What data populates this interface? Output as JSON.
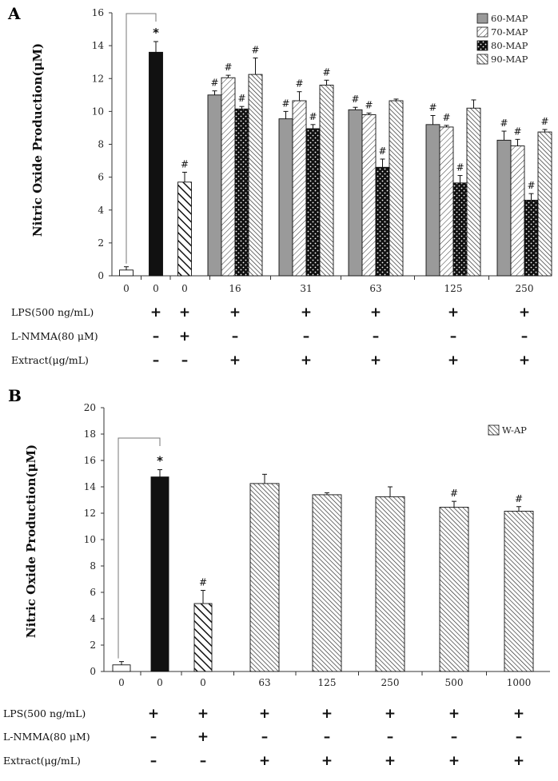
{
  "chart_data": [
    {
      "panel": "A",
      "type": "bar",
      "ylabel": "Nitric Oxide Production(μM)",
      "ylim": [
        0,
        16
      ],
      "yticks": [
        0,
        2,
        4,
        6,
        8,
        10,
        12,
        14,
        16
      ],
      "legend_position": "top-right",
      "controls": [
        {
          "label": "0",
          "value": 0.35,
          "error": 0.2,
          "fill": "white",
          "annotation": ""
        },
        {
          "label": "0",
          "value": 13.6,
          "error": 0.65,
          "fill": "black",
          "annotation": "*"
        },
        {
          "label": "0",
          "value": 5.7,
          "error": 0.6,
          "fill": "diag-bold",
          "annotation": "#"
        }
      ],
      "categories": [
        "16",
        "31",
        "63",
        "125",
        "250"
      ],
      "series": [
        {
          "name": "60-MAP",
          "fill": "gray",
          "values": [
            11.0,
            9.55,
            10.1,
            9.2,
            8.25
          ],
          "errors": [
            0.25,
            0.45,
            0.15,
            0.55,
            0.55
          ],
          "annotations": [
            "#",
            "#",
            "#",
            "#",
            "#"
          ]
        },
        {
          "name": "70-MAP",
          "fill": "hatch-light",
          "values": [
            12.05,
            10.65,
            9.8,
            9.05,
            7.9
          ],
          "errors": [
            0.15,
            0.55,
            0.1,
            0.1,
            0.4
          ],
          "annotations": [
            "#",
            "#",
            "#",
            "#",
            "#"
          ]
        },
        {
          "name": "80-MAP",
          "fill": "dots-black",
          "values": [
            10.15,
            8.95,
            6.6,
            5.65,
            4.6
          ],
          "errors": [
            0.15,
            0.25,
            0.5,
            0.45,
            0.4
          ],
          "annotations": [
            "#",
            "#",
            "#",
            "#",
            "#"
          ]
        },
        {
          "name": "90-MAP",
          "fill": "hatch-dense",
          "values": [
            12.25,
            11.6,
            10.65,
            10.2,
            8.75
          ],
          "errors": [
            1.0,
            0.3,
            0.1,
            0.5,
            0.15
          ],
          "annotations": [
            "#",
            "#",
            "",
            "",
            "#"
          ]
        }
      ],
      "bracket_annotation": "*",
      "conditions": [
        {
          "label": "LPS(500 ng/mL)",
          "marks": [
            "",
            "+",
            "+",
            "+",
            "+",
            "+",
            "+",
            "+"
          ]
        },
        {
          "label": "L-NMMA(80 μM)",
          "marks": [
            "",
            "–",
            "+",
            "–",
            "–",
            "–",
            "–",
            "–"
          ]
        },
        {
          "label": "Extract(μg/mL)",
          "marks": [
            "",
            "–",
            "–",
            "+",
            "+",
            "+",
            "+",
            "+"
          ]
        }
      ]
    },
    {
      "panel": "B",
      "type": "bar",
      "ylabel": "Nitric Oxide Production(μM)",
      "ylim": [
        0,
        20
      ],
      "yticks": [
        0,
        2,
        4,
        6,
        8,
        10,
        12,
        14,
        16,
        18,
        20
      ],
      "legend_position": "top-right",
      "controls": [
        {
          "label": "0",
          "value": 0.5,
          "error": 0.25,
          "fill": "white",
          "annotation": ""
        },
        {
          "label": "0",
          "value": 14.75,
          "error": 0.55,
          "fill": "black",
          "annotation": "*"
        },
        {
          "label": "0",
          "value": 5.15,
          "error": 1.0,
          "fill": "diag-bold",
          "annotation": "#"
        }
      ],
      "categories": [
        "63",
        "125",
        "250",
        "500",
        "1000"
      ],
      "series": [
        {
          "name": "W-AP",
          "fill": "hatch-dense",
          "values": [
            14.25,
            13.4,
            13.25,
            12.45,
            12.15
          ],
          "errors": [
            0.7,
            0.15,
            0.75,
            0.45,
            0.35
          ],
          "annotations": [
            "",
            "",
            "",
            "#",
            "#"
          ]
        }
      ],
      "bracket_annotation": "*",
      "conditions": [
        {
          "label": "LPS(500 ng/mL)",
          "marks": [
            "",
            "+",
            "+",
            "+",
            "+",
            "+",
            "+",
            "+"
          ]
        },
        {
          "label": "L-NMMA(80 μM)",
          "marks": [
            "",
            "–",
            "+",
            "–",
            "–",
            "–",
            "–",
            "–"
          ]
        },
        {
          "label": "Extract(μg/mL)",
          "marks": [
            "",
            "–",
            "–",
            "+",
            "+",
            "+",
            "+",
            "+"
          ]
        }
      ]
    }
  ]
}
